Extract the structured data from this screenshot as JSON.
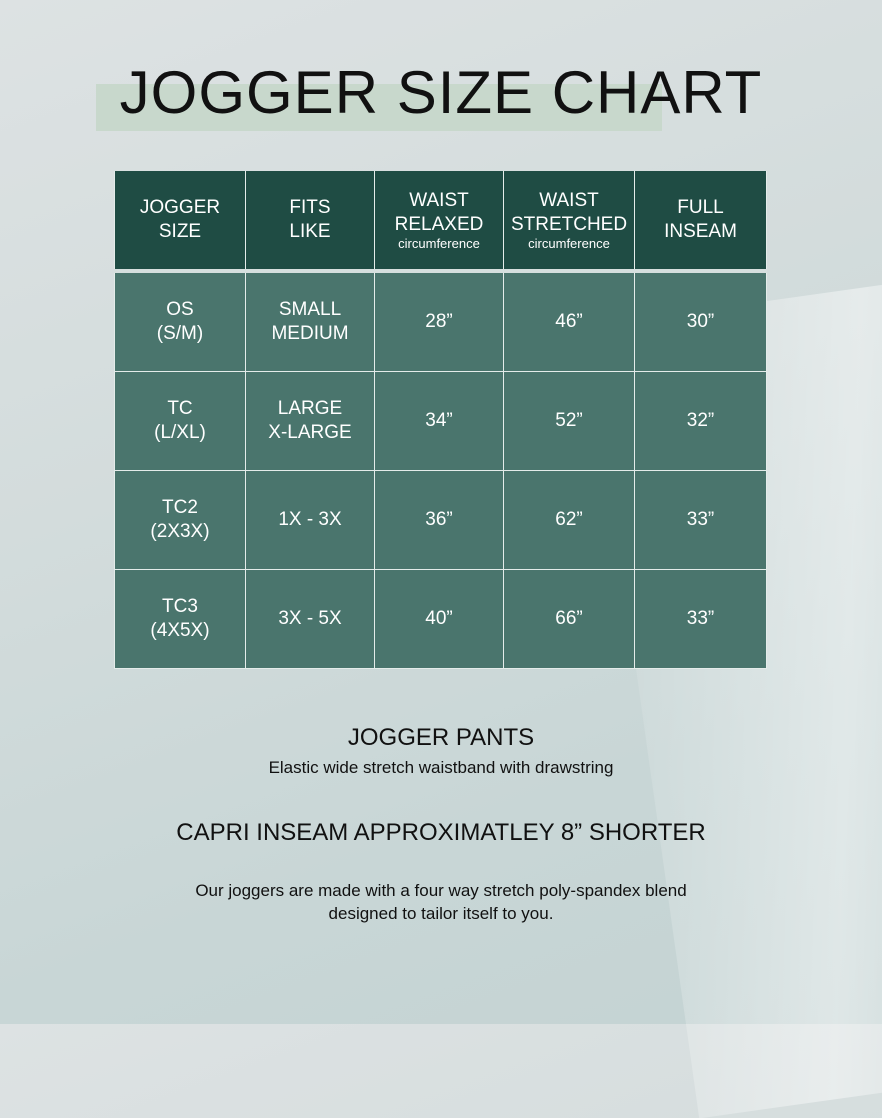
{
  "title": "JOGGER SIZE CHART",
  "colors": {
    "header": "#1f4c44",
    "cell": "#4a756d",
    "highlight": "#c8d8cc"
  },
  "table": {
    "headers": [
      {
        "l1": "JOGGER",
        "l2": "SIZE",
        "sub": ""
      },
      {
        "l1": "FITS",
        "l2": "LIKE",
        "sub": ""
      },
      {
        "l1": "WAIST",
        "l2": "RELAXED",
        "sub": "circumference"
      },
      {
        "l1": "WAIST",
        "l2": "STRETCHED",
        "sub": "circumference"
      },
      {
        "l1": "FULL",
        "l2": "INSEAM",
        "sub": ""
      }
    ],
    "rows": [
      {
        "size1": "OS",
        "size2": "(S/M)",
        "fit1": "SMALL",
        "fit2": "MEDIUM",
        "relaxed": "28”",
        "stretched": "46”",
        "inseam": "30”"
      },
      {
        "size1": "TC",
        "size2": "(L/XL)",
        "fit1": "LARGE",
        "fit2": "X-LARGE",
        "relaxed": "34”",
        "stretched": "52”",
        "inseam": "32”"
      },
      {
        "size1": "TC2",
        "size2": "(2X3X)",
        "fit1": "1X - 3X",
        "fit2": "",
        "relaxed": "36”",
        "stretched": "62”",
        "inseam": "33”"
      },
      {
        "size1": "TC3",
        "size2": "(4X5X)",
        "fit1": "3X - 5X",
        "fit2": "",
        "relaxed": "40”",
        "stretched": "66”",
        "inseam": "33”"
      }
    ]
  },
  "notes": {
    "heading": "JOGGER PANTS",
    "waistband": "Elastic wide stretch waistband with drawstring",
    "capri": "CAPRI INSEAM APPROXIMATLEY 8” SHORTER",
    "fabric1": "Our joggers are made with a four way stretch poly-spandex blend",
    "fabric2": "designed to tailor itself to you."
  }
}
